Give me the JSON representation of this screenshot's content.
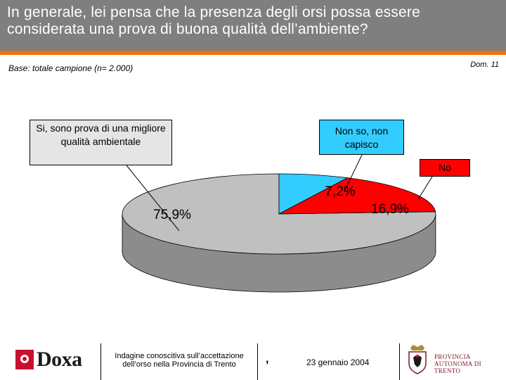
{
  "header": {
    "title": "In generale, lei pensa che la presenza degli orsi possa essere considerata una prova di buona qualità dell’ambiente?"
  },
  "base_note": "Base: totale campione (n= 2.000)",
  "dom_label": "Dom. 11",
  "chart_data": {
    "type": "pie",
    "slices": [
      {
        "label": "Si, sono prova di una migliore qualità ambientale",
        "value": 75.9,
        "value_label": "75,9%",
        "color": "#c0c0c0",
        "side_color": "#8c8c8c"
      },
      {
        "label": "Non so, non capisco",
        "value": 7.2,
        "value_label": "7,2%",
        "color": "#33ccff",
        "side_color": "#1c8fb8"
      },
      {
        "label": "No",
        "value": 16.9,
        "value_label": "16,9%",
        "color": "#ff0000",
        "side_color": "#a00000"
      }
    ],
    "callouts": {
      "si": "Si, sono prova di una migliore qualità ambientale",
      "non_so": "Non so, non capisco",
      "no": "No"
    }
  },
  "footer": {
    "logo_text": "Doxa",
    "note": "Indagine conoscitiva sull’accettazione dell’orso nella Provincia di Trento",
    "comma": ",",
    "date": "23 gennaio 2004",
    "province": "PROVINCIA AUTONOMA DI TRENTO"
  },
  "colors": {
    "header_bg": "#7f7f7f",
    "accent_bar": "#f07010",
    "slice_si": "#c0c0c0",
    "slice_nonso": "#33ccff",
    "slice_no": "#ff0000"
  }
}
